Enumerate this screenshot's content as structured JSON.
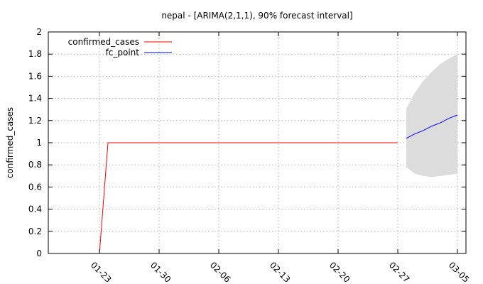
{
  "chart_data": {
    "type": "line",
    "title": "nepal -  [ARIMA(2,1,1), 90% forecast interval]",
    "xlabel": "",
    "ylabel": "confirmed_cases",
    "x_ticks": [
      "01-23",
      "01-30",
      "02-06",
      "02-13",
      "02-20",
      "02-27",
      "03-05"
    ],
    "x_tick_dates": [
      "2020-01-23",
      "2020-01-30",
      "2020-02-06",
      "2020-02-13",
      "2020-02-20",
      "2020-02-27",
      "2020-03-05"
    ],
    "xlim": [
      "2020-01-17",
      "2020-03-06"
    ],
    "y_ticks": [
      "0",
      "0.2",
      "0.4",
      "0.6",
      "0.8",
      "1",
      "1.2",
      "1.4",
      "1.6",
      "1.8",
      "2"
    ],
    "ylim": [
      0,
      2
    ],
    "grid": true,
    "legend_position": "top-left",
    "series": [
      {
        "name": "confirmed_cases",
        "color": "#ff0000",
        "x": [
          "2020-01-23",
          "2020-01-24",
          "2020-02-26",
          "2020-02-27"
        ],
        "values": [
          0,
          1,
          1,
          1
        ]
      },
      {
        "name": "fc_point",
        "color": "#0000ff",
        "x": [
          "2020-02-28",
          "2020-02-29",
          "2020-03-01",
          "2020-03-02",
          "2020-03-03",
          "2020-03-04",
          "2020-03-05"
        ],
        "values": [
          1.04,
          1.08,
          1.11,
          1.15,
          1.18,
          1.22,
          1.25
        ]
      }
    ],
    "interval": {
      "color": "#dcdcdc",
      "x": [
        "2020-02-28",
        "2020-02-29",
        "2020-03-01",
        "2020-03-02",
        "2020-03-03",
        "2020-03-04",
        "2020-03-05"
      ],
      "lower": [
        0.78,
        0.72,
        0.7,
        0.69,
        0.7,
        0.71,
        0.72
      ],
      "upper": [
        1.31,
        1.45,
        1.56,
        1.64,
        1.71,
        1.76,
        1.8
      ]
    }
  }
}
